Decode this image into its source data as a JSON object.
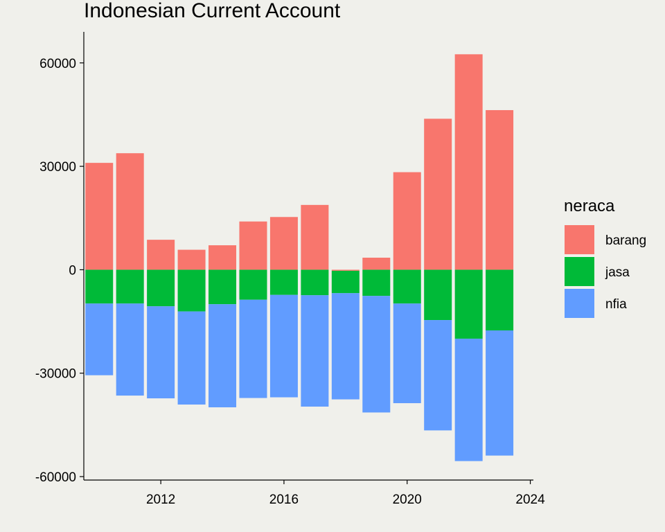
{
  "chart_data": {
    "type": "bar",
    "stacked": true,
    "title": "Indonesian Current Account",
    "xlabel": "",
    "ylabel": "",
    "x": [
      2010,
      2011,
      2012,
      2013,
      2014,
      2015,
      2016,
      2017,
      2018,
      2019,
      2020,
      2021,
      2022,
      2023
    ],
    "series": [
      {
        "name": "barang",
        "color": "#f8766d",
        "values": [
          31000,
          33800,
          8700,
          5800,
          7100,
          14000,
          15300,
          18800,
          -300,
          3500,
          28300,
          43800,
          62500,
          46300
        ]
      },
      {
        "name": "jasa",
        "color": "#00ba38",
        "values": [
          -9800,
          -9800,
          -10600,
          -12100,
          -10000,
          -8700,
          -7300,
          -7400,
          -6500,
          -7600,
          -9800,
          -14600,
          -20000,
          -17600
        ]
      },
      {
        "name": "nfia",
        "color": "#619cff",
        "values": [
          -20800,
          -26700,
          -26700,
          -27000,
          -29900,
          -28500,
          -29700,
          -32300,
          -30800,
          -33800,
          -28900,
          -32000,
          -35500,
          -36300
        ]
      }
    ],
    "xticks": [
      2012,
      2016,
      2020,
      2024
    ],
    "yticks": [
      -60000,
      -30000,
      0,
      30000,
      60000
    ],
    "xlim": [
      2009.5,
      2024.1
    ],
    "ylim": [
      -61000,
      69000
    ],
    "grid": false,
    "legend": {
      "title": "neraca",
      "position": "right"
    }
  }
}
